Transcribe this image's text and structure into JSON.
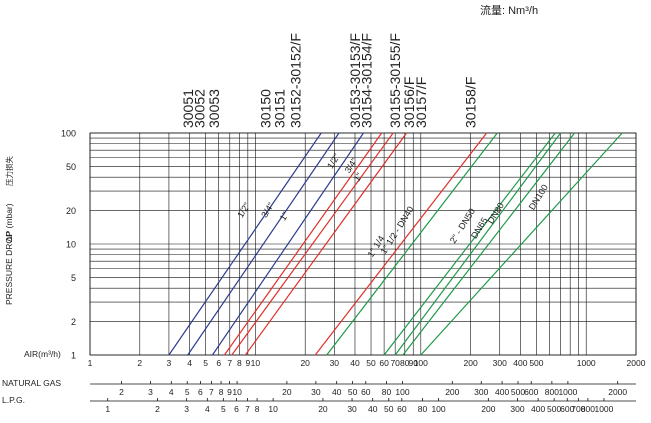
{
  "flow_unit": "流量: Nm³/h",
  "y_axis": {
    "label_en": "PRESSURE DROP",
    "label_sym": "ΔP (mbar)",
    "label_cn": "压力损失",
    "ticks": [
      1,
      2,
      5,
      10,
      20,
      50,
      100
    ],
    "scale": "log"
  },
  "model_labels": [
    {
      "text": "30051",
      "x": 3.9
    },
    {
      "text": "30052",
      "x": 4.6
    },
    {
      "text": "30053",
      "x": 5.6
    },
    {
      "text": "30150",
      "x": 11.5
    },
    {
      "text": "30151",
      "x": 14
    },
    {
      "text": "30152-30152/F",
      "x": 17.5
    },
    {
      "text": "30153-30153/F",
      "x": 40
    },
    {
      "text": "30154-30154/F",
      "x": 47
    },
    {
      "text": "30155-30155/F",
      "x": 70
    },
    {
      "text": "30156/F",
      "x": 85
    },
    {
      "text": "30157/F",
      "x": 100
    },
    {
      "text": "30158/F",
      "x": 200
    }
  ],
  "gas_axes": [
    {
      "name": "AIR(m³/h)",
      "ticks": [
        {
          "label": "1",
          "v": 1
        },
        {
          "label": "2",
          "v": 2
        },
        {
          "label": "3",
          "v": 3
        },
        {
          "label": "4",
          "v": 4
        },
        {
          "label": "5",
          "v": 5
        },
        {
          "label": "6",
          "v": 6
        },
        {
          "label": "7",
          "v": 7
        },
        {
          "label": "8",
          "v": 8
        },
        {
          "label": "9",
          "v": 9
        },
        {
          "label": "10",
          "v": 10
        },
        {
          "label": "20",
          "v": 20
        },
        {
          "label": "30",
          "v": 30
        },
        {
          "label": "40",
          "v": 40
        },
        {
          "label": "50",
          "v": 50
        },
        {
          "label": "60",
          "v": 60
        },
        {
          "label": "70",
          "v": 70
        },
        {
          "label": "80",
          "v": 80
        },
        {
          "label": "90",
          "v": 90
        },
        {
          "label": "100",
          "v": 100
        },
        {
          "label": "200",
          "v": 200
        },
        {
          "label": "300",
          "v": 300
        },
        {
          "label": "400",
          "v": 400
        },
        {
          "label": "500",
          "v": 500
        },
        {
          "label": "1000",
          "v": 1000
        },
        {
          "label": "2000",
          "v": 2000
        }
      ]
    },
    {
      "name": "NATURAL GAS",
      "ticks": [
        {
          "label": "2",
          "v": 1.55
        },
        {
          "label": "3",
          "v": 2.32
        },
        {
          "label": "4",
          "v": 3.1
        },
        {
          "label": "5",
          "v": 3.87
        },
        {
          "label": "6",
          "v": 4.65
        },
        {
          "label": "7",
          "v": 5.42
        },
        {
          "label": "8",
          "v": 6.2
        },
        {
          "label": "9",
          "v": 6.97
        },
        {
          "label": "10",
          "v": 7.75
        },
        {
          "label": "20",
          "v": 15.5
        },
        {
          "label": "30",
          "v": 23.2
        },
        {
          "label": "40",
          "v": 31
        },
        {
          "label": "50",
          "v": 38.7
        },
        {
          "label": "60",
          "v": 46.5
        },
        {
          "label": "80",
          "v": 62
        },
        {
          "label": "100",
          "v": 77.5
        },
        {
          "label": "200",
          "v": 155
        },
        {
          "label": "300",
          "v": 232
        },
        {
          "label": "400",
          "v": 310
        },
        {
          "label": "500",
          "v": 387
        },
        {
          "label": "600",
          "v": 465
        },
        {
          "label": "800",
          "v": 620
        },
        {
          "label": "1000",
          "v": 775
        },
        {
          "label": "2000",
          "v": 1550
        }
      ]
    },
    {
      "name": "L.P.G.",
      "ticks": [
        {
          "label": "1",
          "v": 1.28
        },
        {
          "label": "2",
          "v": 2.56
        },
        {
          "label": "3",
          "v": 3.84
        },
        {
          "label": "4",
          "v": 5.12
        },
        {
          "label": "5",
          "v": 6.4
        },
        {
          "label": "6",
          "v": 7.68
        },
        {
          "label": "7",
          "v": 8.96
        },
        {
          "label": "8",
          "v": 10.24
        },
        {
          "label": "10",
          "v": 12.8
        },
        {
          "label": "20",
          "v": 25.6
        },
        {
          "label": "30",
          "v": 38.4
        },
        {
          "label": "40",
          "v": 51.2
        },
        {
          "label": "50",
          "v": 64
        },
        {
          "label": "60",
          "v": 76.8
        },
        {
          "label": "80",
          "v": 102.4
        },
        {
          "label": "100",
          "v": 128
        },
        {
          "label": "200",
          "v": 256
        },
        {
          "label": "300",
          "v": 384
        },
        {
          "label": "400",
          "v": 512
        },
        {
          "label": "500",
          "v": 640
        },
        {
          "label": "600",
          "v": 768
        },
        {
          "label": "700",
          "v": 896
        },
        {
          "label": "800",
          "v": 1024
        },
        {
          "label": "1000",
          "v": 1280
        }
      ]
    }
  ],
  "colors": {
    "blue": "#2c3e8f",
    "red": "#e0312a",
    "green": "#1e9a4a",
    "grid": "#111111"
  },
  "chart_data": {
    "type": "line",
    "xscale": "log",
    "yscale": "log",
    "xlim": [
      1,
      2000
    ],
    "ylim": [
      1,
      100
    ],
    "series": [
      {
        "name": "1/2\"",
        "color": "blue",
        "points": [
          [
            3,
            1
          ],
          [
            25,
            100
          ]
        ]
      },
      {
        "name": "3/4\"",
        "color": "blue",
        "points": [
          [
            3.9,
            1
          ],
          [
            32,
            100
          ]
        ]
      },
      {
        "name": "1\"",
        "color": "blue",
        "points": [
          [
            5.5,
            1
          ],
          [
            45,
            100
          ]
        ]
      },
      {
        "name": "1/2\"",
        "color": "red",
        "points": [
          [
            6.5,
            1
          ],
          [
            58,
            100
          ]
        ]
      },
      {
        "name": "3/4\"",
        "color": "red",
        "points": [
          [
            7.2,
            1
          ],
          [
            68,
            100
          ]
        ]
      },
      {
        "name": "1\"",
        "color": "red",
        "points": [
          [
            8.7,
            1
          ],
          [
            82,
            100
          ]
        ]
      },
      {
        "name": "1\" 1/4",
        "color": "red",
        "points": [
          [
            23,
            1
          ],
          [
            250,
            100
          ]
        ]
      },
      {
        "name": "1\" 1/2 - DN40",
        "color": "green",
        "points": [
          [
            27,
            1
          ],
          [
            290,
            100
          ]
        ]
      },
      {
        "name": "2\" - DN50",
        "color": "green",
        "points": [
          [
            60,
            1
          ],
          [
            650,
            100
          ]
        ]
      },
      {
        "name": "DN65",
        "color": "green",
        "points": [
          [
            70,
            1
          ],
          [
            700,
            100
          ]
        ]
      },
      {
        "name": "DN80",
        "color": "green",
        "points": [
          [
            78,
            1
          ],
          [
            850,
            100
          ]
        ]
      },
      {
        "name": "DN100",
        "color": "green",
        "points": [
          [
            100,
            1
          ],
          [
            1650,
            100
          ]
        ]
      }
    ],
    "annotations": [
      {
        "text": "1/2\"",
        "x": 8.3,
        "y": 17
      },
      {
        "text": "3/4\"",
        "x": 11.6,
        "y": 17
      },
      {
        "text": "1\"",
        "x": 15,
        "y": 16
      },
      {
        "text": "1/2\"",
        "x": 29,
        "y": 47
      },
      {
        "text": "3/4\"",
        "x": 37,
        "y": 43
      },
      {
        "text": "1\"",
        "x": 42,
        "y": 36
      },
      {
        "text": "1\" 1/4",
        "x": 51,
        "y": 7.5
      },
      {
        "text": "1\" 1/2 - DN40",
        "x": 61,
        "y": 8
      },
      {
        "text": "2\" - DN50",
        "x": 160,
        "y": 10
      },
      {
        "text": "DN65",
        "x": 215,
        "y": 11
      },
      {
        "text": "DN80",
        "x": 270,
        "y": 15
      },
      {
        "text": "DN100",
        "x": 480,
        "y": 20
      }
    ]
  }
}
